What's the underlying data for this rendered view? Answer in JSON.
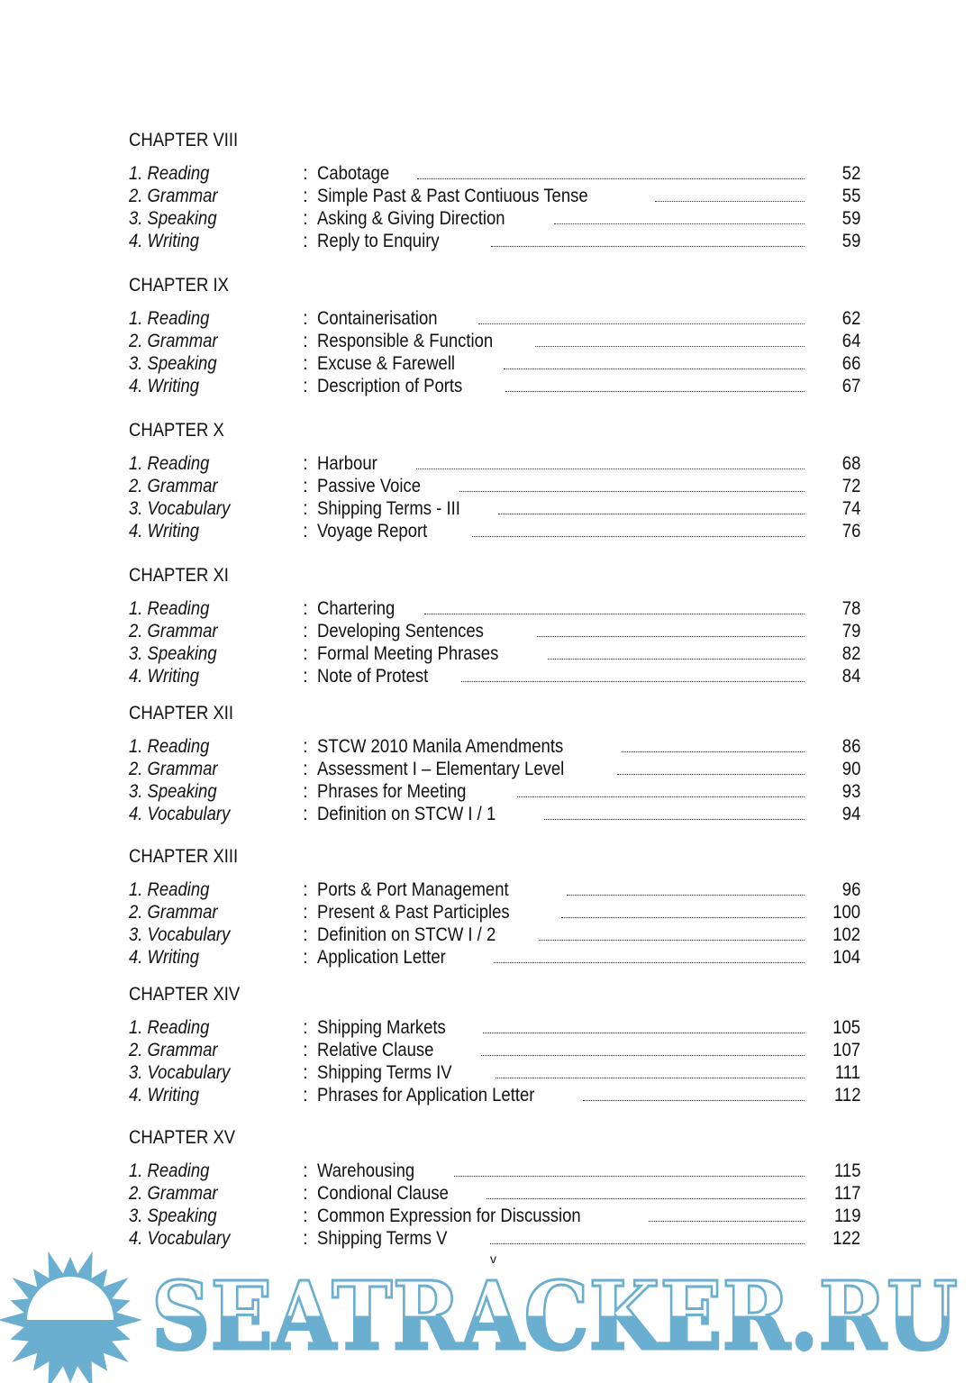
{
  "chapters": [
    {
      "title": "CHAPTER VIII",
      "entries": [
        {
          "section": "1. Reading",
          "topic": "Cabotage",
          "page": "52"
        },
        {
          "section": "2. Grammar",
          "topic": "Simple Past & Past Contiuous Tense",
          "page": "55"
        },
        {
          "section": "3. Speaking",
          "topic": "Asking & Giving Direction",
          "page": "59"
        },
        {
          "section": "4. Writing",
          "topic": "Reply to Enquiry",
          "page": "59"
        }
      ]
    },
    {
      "title": "CHAPTER IX",
      "entries": [
        {
          "section": "1. Reading",
          "topic": "Containerisation",
          "page": "62"
        },
        {
          "section": "2. Grammar",
          "topic": "Responsible & Function",
          "page": "64"
        },
        {
          "section": "3. Speaking",
          "topic": "Excuse & Farewell",
          "page": "66"
        },
        {
          "section": "4. Writing",
          "topic": "Description of Ports",
          "page": "67"
        }
      ]
    },
    {
      "title": "CHAPTER X",
      "entries": [
        {
          "section": "1. Reading",
          "topic": "Harbour",
          "page": "68"
        },
        {
          "section": "2. Grammar",
          "topic": "Passive Voice",
          "page": "72"
        },
        {
          "section": "3. Vocabulary",
          "topic": "Shipping Terms - III",
          "page": "74"
        },
        {
          "section": "4. Writing",
          "topic": "Voyage Report",
          "page": "76"
        }
      ]
    },
    {
      "title": "CHAPTER XI",
      "entries": [
        {
          "section": "1. Reading",
          "topic": "Chartering",
          "page": "78"
        },
        {
          "section": "2. Grammar",
          "topic": "Developing Sentences",
          "page": "79"
        },
        {
          "section": "3. Speaking",
          "topic": "Formal Meeting Phrases",
          "page": "82"
        },
        {
          "section": "4. Writing",
          "topic": "Note of Protest",
          "page": "84"
        }
      ]
    },
    {
      "title": "CHAPTER XII",
      "entries": [
        {
          "section": "1. Reading",
          "topic": "STCW 2010 Manila Amendments",
          "page": "86"
        },
        {
          "section": "2. Grammar",
          "topic": "Assessment I – Elementary Level",
          "page": "90"
        },
        {
          "section": "3. Speaking",
          "topic": "Phrases for Meeting",
          "page": "93"
        },
        {
          "section": "4. Vocabulary",
          "topic": "Definition on STCW I / 1",
          "page": "94"
        }
      ]
    },
    {
      "title": "CHAPTER XIII",
      "entries": [
        {
          "section": "1. Reading",
          "topic": "Ports & Port Management",
          "page": "96"
        },
        {
          "section": "2. Grammar",
          "topic": "Present & Past Participles",
          "page": "100"
        },
        {
          "section": "3. Vocabulary",
          "topic": "Definition on STCW I / 2",
          "page": "102"
        },
        {
          "section": "4. Writing",
          "topic": "Application Letter",
          "page": "104"
        }
      ]
    },
    {
      "title": "CHAPTER XIV",
      "entries": [
        {
          "section": "1. Reading",
          "topic": "Shipping Markets",
          "page": "105"
        },
        {
          "section": "2. Grammar",
          "topic": "Relative Clause",
          "page": "107"
        },
        {
          "section": "3. Vocabulary",
          "topic": "Shipping Terms IV",
          "page": "111"
        },
        {
          "section": "4. Writing",
          "topic": "Phrases for Application Letter",
          "page": "112"
        }
      ]
    },
    {
      "title": "CHAPTER XV",
      "entries": [
        {
          "section": "1. Reading",
          "topic": "Warehousing",
          "page": "115"
        },
        {
          "section": "2. Grammar",
          "topic": "Condional Clause",
          "page": "117"
        },
        {
          "section": "3. Speaking",
          "topic": "Common Expression for Discussion",
          "page": "119"
        },
        {
          "section": "4. Vocabulary",
          "topic": "Shipping Terms V",
          "page": "122"
        }
      ]
    }
  ],
  "page_number": "v",
  "watermark": {
    "text": "SEATRACKER.RU",
    "color": "#6aaed0"
  }
}
